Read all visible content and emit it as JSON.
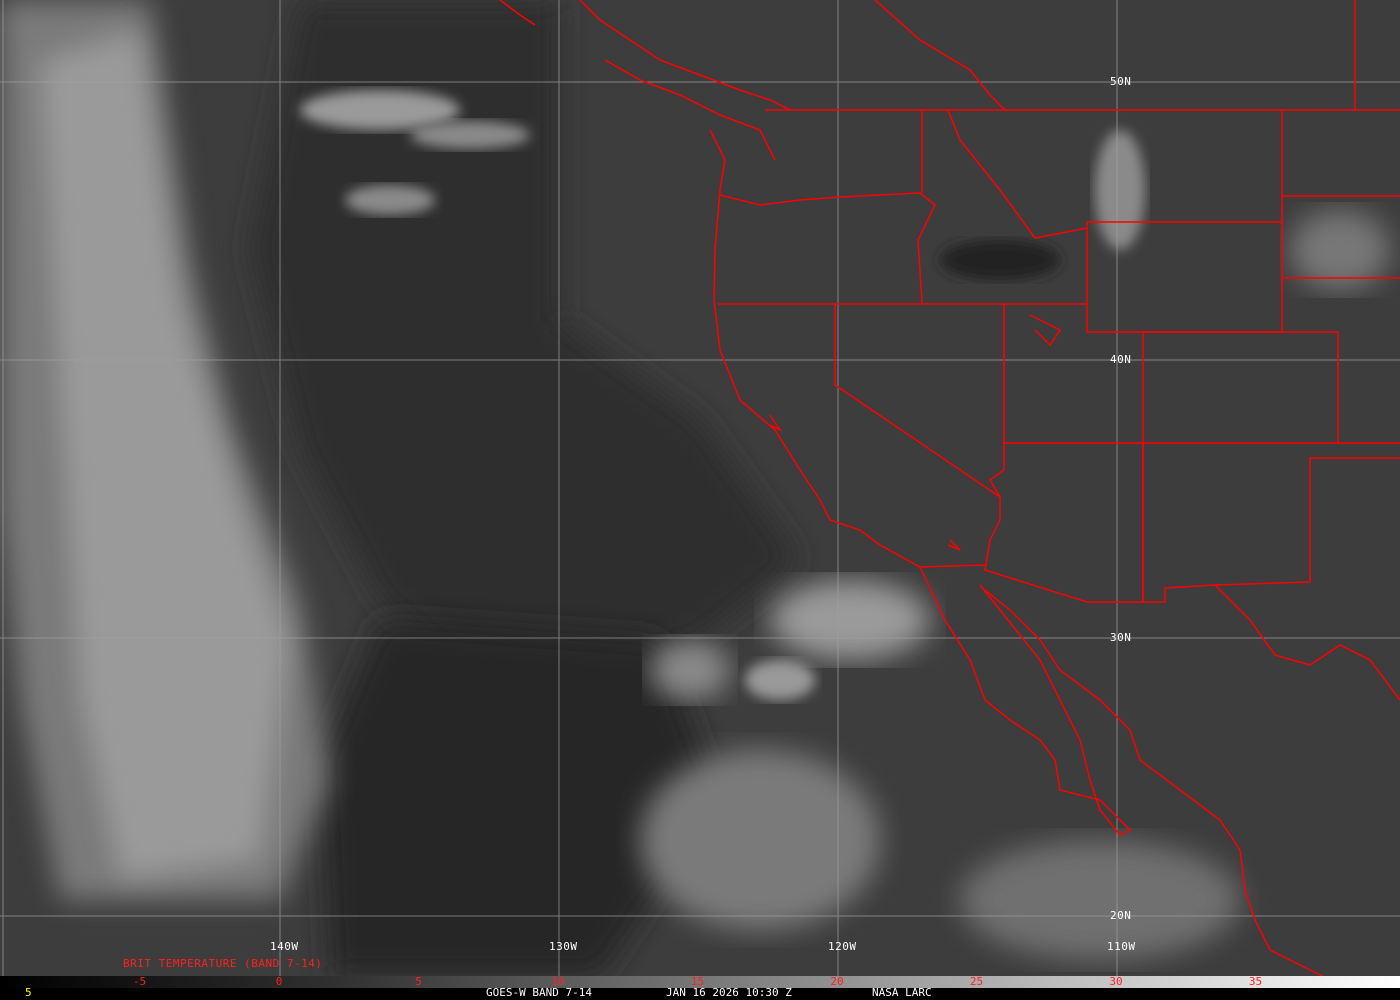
{
  "image": {
    "type": "satellite-infrared",
    "colors": {
      "borders": "#ff0000",
      "grid": "#a0a0a0",
      "scale_labels": "#ff2020",
      "corner_number": "#ffff00"
    }
  },
  "grid": {
    "longitudes": [
      "140W",
      "130W",
      "120W",
      "110W"
    ],
    "latitudes": [
      "50N",
      "40N",
      "30N",
      "20N"
    ]
  },
  "legend": {
    "title": "BRIT TEMPERATURE (BAND 7-14)",
    "range": [
      -10,
      40
    ],
    "ticks": [
      "-5",
      "0",
      "5",
      "10",
      "15",
      "20",
      "25",
      "30",
      "35"
    ]
  },
  "footer": {
    "corner": "5",
    "satellite": "GOES-W BAND 7-14",
    "datetime": "JAN 16 2026 10:30 Z",
    "source": "NASA LARC"
  }
}
